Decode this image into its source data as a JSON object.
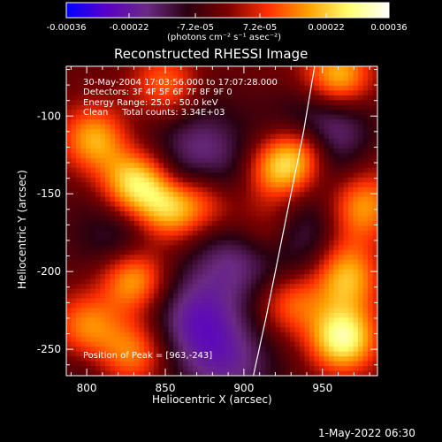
{
  "colorbar": {
    "ticks": [
      "-0.00036",
      "-0.00022",
      "-7.2e-05",
      "7.2e-05",
      "0.00022",
      "0.00036"
    ],
    "tick_values": [
      -0.00036,
      -0.00022,
      -7.2e-05,
      7.2e-05,
      0.00022,
      0.00036
    ],
    "range": [
      -0.00036,
      0.00036
    ],
    "units": "(photons cm⁻² s⁻¹ asec⁻²)",
    "stops": [
      "#0000ff",
      "#5a00c8",
      "#6a2a82",
      "#2a0010",
      "#7a0000",
      "#ff3000",
      "#ffa000",
      "#ffff70",
      "#ffffff"
    ]
  },
  "chart_data": {
    "type": "heatmap",
    "title": "Reconstructed RHESSI Image",
    "xlabel": "Heliocentric X (arcsec)",
    "ylabel": "Heliocentric Y (arcsec)",
    "xlim": [
      787,
      985
    ],
    "ylim": [
      -267,
      -68
    ],
    "xticks": [
      800,
      850,
      900,
      950
    ],
    "yticks": [
      -100,
      -150,
      -200,
      -250
    ],
    "annotations": [
      "30-May-2004 17:03:56.000 to 17:07:28.000",
      "Detectors: 3F 4F 5F 6F 7F 8F 9F 0",
      "Energy Range: 25.0 - 50.0 keV",
      "Clean     Total counts: 3.34E+03"
    ],
    "peak_label": "Position of Peak = [963,-243]",
    "peak": [
      963,
      -243
    ],
    "limb_curve": [
      [
        945,
        -68
      ],
      [
        938,
        -110
      ],
      [
        930,
        -150
      ],
      [
        922,
        -190
      ],
      [
        914,
        -230
      ],
      [
        906,
        -267
      ]
    ],
    "bright_sources": [
      {
        "x": 830,
        "y": -143,
        "strength": 0.9
      },
      {
        "x": 805,
        "y": -115,
        "strength": 0.7
      },
      {
        "x": 852,
        "y": -160,
        "strength": 0.75
      },
      {
        "x": 830,
        "y": -205,
        "strength": 0.75
      },
      {
        "x": 830,
        "y": -250,
        "strength": 0.6
      },
      {
        "x": 960,
        "y": -75,
        "strength": 0.8
      },
      {
        "x": 937,
        "y": -125,
        "strength": 0.75
      },
      {
        "x": 920,
        "y": -135,
        "strength": 0.65
      },
      {
        "x": 963,
        "y": -243,
        "strength": 1.0
      },
      {
        "x": 965,
        "y": -205,
        "strength": 0.7
      },
      {
        "x": 912,
        "y": -175,
        "strength": 0.6
      },
      {
        "x": 880,
        "y": -155,
        "strength": 0.45
      },
      {
        "x": 850,
        "y": -80,
        "strength": 0.5
      },
      {
        "x": 800,
        "y": -235,
        "strength": 0.55
      },
      {
        "x": 930,
        "y": -220,
        "strength": 0.5
      },
      {
        "x": 975,
        "y": -160,
        "strength": 0.55
      }
    ],
    "dark_regions": [
      {
        "x": 880,
        "y": -115,
        "strength": 0.9
      },
      {
        "x": 900,
        "y": -190,
        "strength": 0.85
      },
      {
        "x": 870,
        "y": -230,
        "strength": 0.8
      },
      {
        "x": 950,
        "y": -110,
        "strength": 0.7
      },
      {
        "x": 945,
        "y": -175,
        "strength": 0.6
      },
      {
        "x": 820,
        "y": -175,
        "strength": 0.4
      },
      {
        "x": 890,
        "y": -260,
        "strength": 0.6
      }
    ]
  },
  "footer": {
    "timestamp": "1-May-2022 06:30"
  }
}
